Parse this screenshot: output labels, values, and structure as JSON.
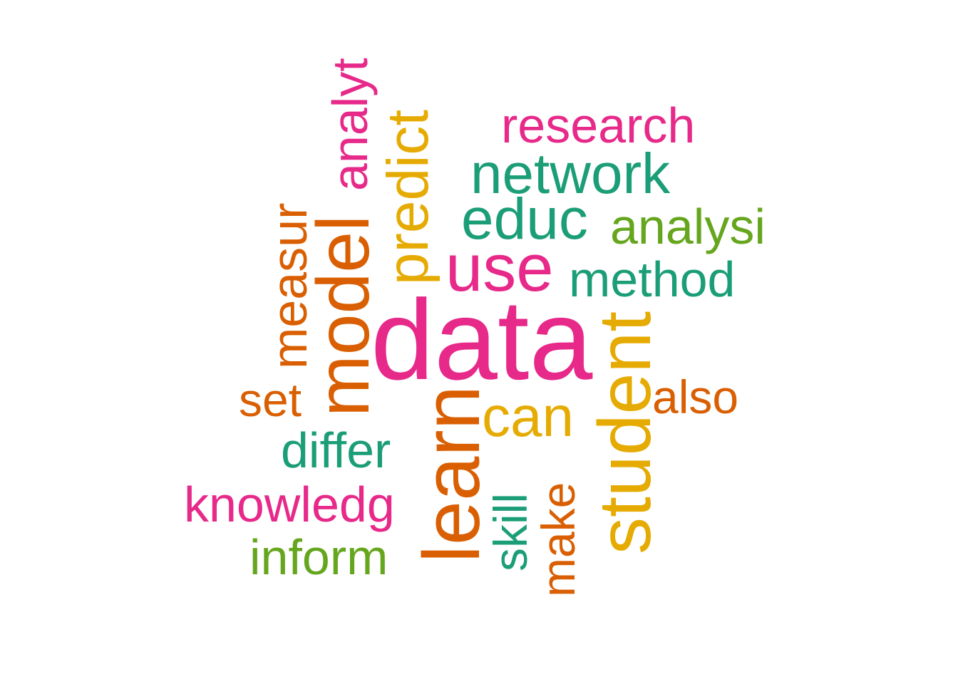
{
  "palette": {
    "pink": "#E7298A",
    "orange": "#D95F02",
    "gold": "#E6AB02",
    "teal": "#1B9E77",
    "green": "#66A61E"
  },
  "chart_data": {
    "type": "wordcloud",
    "words": [
      {
        "text": "data",
        "weight": 1.0,
        "color": "pink",
        "rotated": false
      },
      {
        "text": "learn",
        "weight": 0.7,
        "color": "orange",
        "rotated": true
      },
      {
        "text": "model",
        "weight": 0.66,
        "color": "orange",
        "rotated": true
      },
      {
        "text": "student",
        "weight": 0.66,
        "color": "gold",
        "rotated": true
      },
      {
        "text": "use",
        "weight": 0.62,
        "color": "pink",
        "rotated": false
      },
      {
        "text": "predict",
        "weight": 0.55,
        "color": "gold",
        "rotated": true
      },
      {
        "text": "educ",
        "weight": 0.55,
        "color": "teal",
        "rotated": false
      },
      {
        "text": "network",
        "weight": 0.55,
        "color": "teal",
        "rotated": false
      },
      {
        "text": "can",
        "weight": 0.55,
        "color": "gold",
        "rotated": false
      },
      {
        "text": "analyt",
        "weight": 0.5,
        "color": "pink",
        "rotated": true
      },
      {
        "text": "measur",
        "weight": 0.5,
        "color": "orange",
        "rotated": true
      },
      {
        "text": "method",
        "weight": 0.5,
        "color": "teal",
        "rotated": false
      },
      {
        "text": "analysi",
        "weight": 0.5,
        "color": "green",
        "rotated": false
      },
      {
        "text": "research",
        "weight": 0.5,
        "color": "pink",
        "rotated": false
      },
      {
        "text": "differ",
        "weight": 0.5,
        "color": "teal",
        "rotated": false
      },
      {
        "text": "knowledg",
        "weight": 0.5,
        "color": "pink",
        "rotated": false
      },
      {
        "text": "inform",
        "weight": 0.5,
        "color": "green",
        "rotated": false
      },
      {
        "text": "make",
        "weight": 0.46,
        "color": "orange",
        "rotated": true
      },
      {
        "text": "skill",
        "weight": 0.46,
        "color": "teal",
        "rotated": true
      },
      {
        "text": "set",
        "weight": 0.46,
        "color": "orange",
        "rotated": false
      },
      {
        "text": "also",
        "weight": 0.46,
        "color": "orange",
        "rotated": false
      }
    ]
  }
}
